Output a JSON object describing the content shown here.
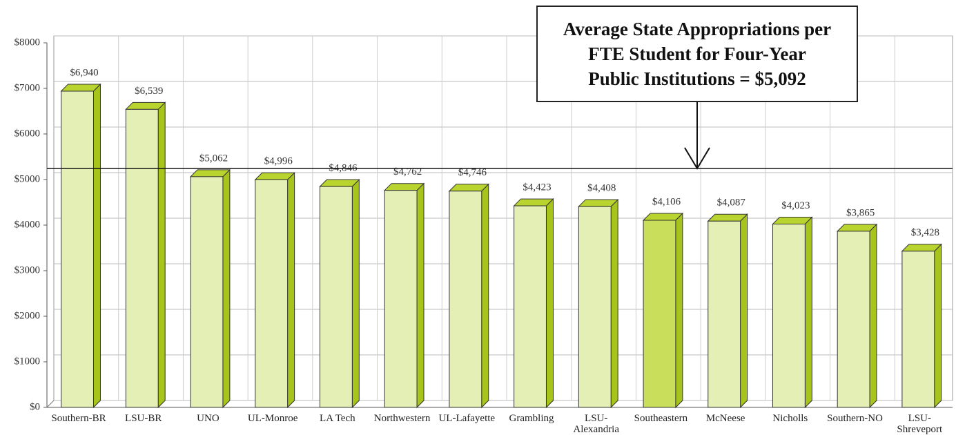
{
  "chart_data": {
    "type": "bar",
    "categories": [
      "Southern-BR",
      "LSU-BR",
      "UNO",
      "UL-Monroe",
      "LA Tech",
      "Northwestern",
      "UL-Lafayette",
      "Grambling",
      "LSU-\nAlexandria",
      "Southeastern",
      "McNeese",
      "Nicholls",
      "Southern-NO",
      "LSU-\nShreveport"
    ],
    "values": [
      6940,
      6539,
      5062,
      4996,
      4846,
      4762,
      4746,
      4423,
      4408,
      4106,
      4087,
      4023,
      3865,
      3428
    ],
    "value_labels": [
      "$6,940",
      "$6,539",
      "$5,062",
      "$4,996",
      "$4,846",
      "$4,762",
      "$4,746",
      "$4,423",
      "$4,408",
      "$4,106",
      "$4,087",
      "$4,023",
      "$3,865",
      "$3,428"
    ],
    "colors": [
      "#e3efb4",
      "#e3efb4",
      "#e3efb4",
      "#e3efb4",
      "#e3efb4",
      "#e3efb4",
      "#e3efb4",
      "#e3efb4",
      "#e3efb4",
      "#c9de5a",
      "#e3efb4",
      "#e3efb4",
      "#e3efb4",
      "#e3efb4"
    ],
    "ylim": [
      0,
      8000
    ],
    "yticks": [
      {
        "value": 0,
        "label": "$0"
      },
      {
        "value": 1000,
        "label": "$1000"
      },
      {
        "value": 2000,
        "label": "$2000"
      },
      {
        "value": 3000,
        "label": "$3000"
      },
      {
        "value": 4000,
        "label": "$4000"
      },
      {
        "value": 5000,
        "label": "$5000"
      },
      {
        "value": 6000,
        "label": "$6000"
      },
      {
        "value": 7000,
        "label": "$7000"
      },
      {
        "value": 8000,
        "label": "$8000"
      }
    ],
    "grid": true,
    "reference_line": {
      "value": 5092,
      "label": "Average State Appropriations per\nFTE Student for Four-Year\nPublic Institutions = $5,092"
    }
  }
}
